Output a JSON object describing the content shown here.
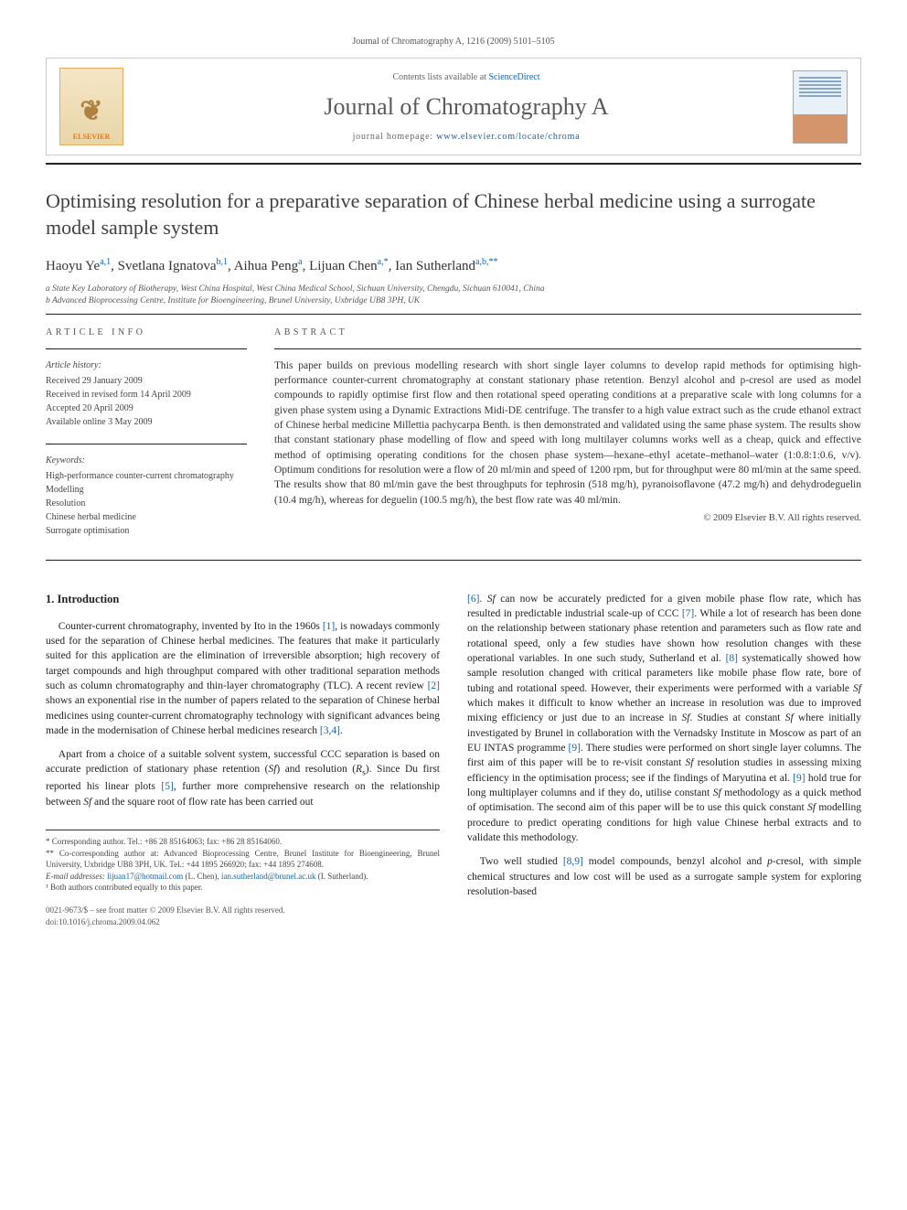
{
  "journal_header": "Journal of Chromatography A, 1216 (2009) 5101–5105",
  "banner": {
    "publisher": "ELSEVIER",
    "contents_prefix": "Contents lists available at ",
    "contents_link": "ScienceDirect",
    "journal_title": "Journal of Chromatography A",
    "homepage_prefix": "journal homepage: ",
    "homepage_url": "www.elsevier.com/locate/chroma"
  },
  "title": "Optimising resolution for a preparative separation of Chinese herbal medicine using a surrogate model sample system",
  "authors_html": "Haoyu Ye<sup>a,1</sup>, Svetlana Ignatova<sup>b,1</sup>, Aihua Peng<sup>a</sup>, Lijuan Chen<sup>a,*</sup>, Ian Sutherland<sup>a,b,**</sup>",
  "affiliations": {
    "a": "a State Key Laboratory of Biotherapy, West China Hospital, West China Medical School, Sichuan University, Chengdu, Sichuan 610041, China",
    "b": "b Advanced Bioprocessing Centre, Institute for Bioengineering, Brunel University, Uxbridge UB8 3PH, UK"
  },
  "article_info": {
    "label": "ARTICLE INFO",
    "history_label": "Article history:",
    "history": [
      "Received 29 January 2009",
      "Received in revised form 14 April 2009",
      "Accepted 20 April 2009",
      "Available online 3 May 2009"
    ],
    "keywords_label": "Keywords:",
    "keywords": [
      "High-performance counter-current chromatography",
      "Modelling",
      "Resolution",
      "Chinese herbal medicine",
      "Surrogate optimisation"
    ]
  },
  "abstract": {
    "label": "ABSTRACT",
    "text": "This paper builds on previous modelling research with short single layer columns to develop rapid methods for optimising high-performance counter-current chromatography at constant stationary phase retention. Benzyl alcohol and p-cresol are used as model compounds to rapidly optimise first flow and then rotational speed operating conditions at a preparative scale with long columns for a given phase system using a Dynamic Extractions Midi-DE centrifuge. The transfer to a high value extract such as the crude ethanol extract of Chinese herbal medicine Millettia pachycarpa Benth. is then demonstrated and validated using the same phase system. The results show that constant stationary phase modelling of flow and speed with long multilayer columns works well as a cheap, quick and effective method of optimising operating conditions for the chosen phase system—hexane–ethyl acetate–methanol–water (1:0.8:1:0.6, v/v). Optimum conditions for resolution were a flow of 20 ml/min and speed of 1200 rpm, but for throughput were 80 ml/min at the same speed. The results show that 80 ml/min gave the best throughputs for tephrosin (518 mg/h), pyranoisoflavone (47.2 mg/h) and dehydrodeguelin (10.4 mg/h), whereas for deguelin (100.5 mg/h), the best flow rate was 40 ml/min.",
    "copyright": "© 2009 Elsevier B.V. All rights reserved."
  },
  "body": {
    "intro_heading": "1.  Introduction",
    "p1": "Counter-current chromatography, invented by Ito in the 1960s [1], is nowadays commonly used for the separation of Chinese herbal medicines. The features that make it particularly suited for this application are the elimination of irreversible absorption; high recovery of target compounds and high throughput compared with other traditional separation methods such as column chromatography and thin-layer chromatography (TLC). A recent review [2] shows an exponential rise in the number of papers related to the separation of Chinese herbal medicines using counter-current chromatography technology with significant advances being made in the modernisation of Chinese herbal medicines research [3,4].",
    "p2": "Apart from a choice of a suitable solvent system, successful CCC separation is based on accurate prediction of stationary phase retention (Sf) and resolution (Rs). Since Du first reported his linear plots [5], further more comprehensive research on the relationship between Sf and the square root of flow rate has been carried out",
    "p3": "[6]. Sf can now be accurately predicted for a given mobile phase flow rate, which has resulted in predictable industrial scale-up of CCC [7]. While a lot of research has been done on the relationship between stationary phase retention and parameters such as flow rate and rotational speed, only a few studies have shown how resolution changes with these operational variables. In one such study, Sutherland et al. [8] systematically showed how sample resolution changed with critical parameters like mobile phase flow rate, bore of tubing and rotational speed. However, their experiments were performed with a variable Sf which makes it difficult to know whether an increase in resolution was due to improved mixing efficiency or just due to an increase in Sf. Studies at constant Sf where initially investigated by Brunel in collaboration with the Vernadsky Institute in Moscow as part of an EU INTAS programme [9]. There studies were performed on short single layer columns. The first aim of this paper will be to re-visit constant Sf resolution studies in assessing mixing efficiency in the optimisation process; see if the findings of Maryutina et al. [9] hold true for long multiplayer columns and if they do, utilise constant Sf methodology as a quick method of optimisation. The second aim of this paper will be to use this quick constant Sf modelling procedure to predict operating conditions for high value Chinese herbal extracts and to validate this methodology.",
    "p4": "Two well studied [8,9] model compounds, benzyl alcohol and p-cresol, with simple chemical structures and low cost will be used as a surrogate sample system for exploring resolution-based"
  },
  "footnotes": {
    "star": "* Corresponding author. Tel.: +86 28 85164063; fax: +86 28 85164060.",
    "starstar": "** Co-corresponding author at: Advanced Bioprocessing Centre, Brunel Institute for Bioengineering, Brunel University, Uxbridge UB8 3PH, UK. Tel.: +44 1895 266920; fax: +44 1895 274608.",
    "email_label": "E-mail addresses: ",
    "email1": "lijuan17@hotmail.com",
    "email1_who": " (L. Chen), ",
    "email2": "ian.sutherland@brunel.ac.uk",
    "email2_who": " (I. Sutherland).",
    "note1": "¹ Both authors contributed equally to this paper."
  },
  "footer": {
    "line1": "0021-9673/$ – see front matter © 2009 Elsevier B.V. All rights reserved.",
    "line2": "doi:10.1016/j.chroma.2009.04.062"
  },
  "colors": {
    "link": "#1b62a5",
    "text": "#222222",
    "muted": "#555555"
  }
}
